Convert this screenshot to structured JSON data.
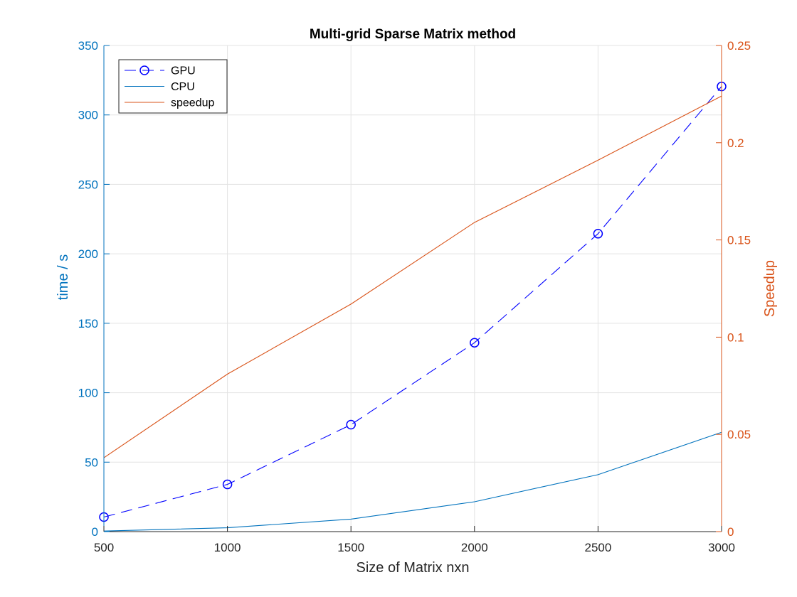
{
  "chart_data": {
    "type": "line",
    "title": "Multi-grid Sparse Matrix method",
    "xlabel": "Size of Matrix nxn",
    "ylabel": "time / s",
    "ylabel_right": "Speedup",
    "x": [
      500,
      1000,
      1500,
      2000,
      2500,
      3000
    ],
    "xlim": [
      500,
      3000
    ],
    "ylim": [
      0,
      350
    ],
    "ylim_right": [
      0,
      0.25
    ],
    "xticks": [
      500,
      1000,
      1500,
      2000,
      2500,
      3000
    ],
    "yticks": [
      0,
      50,
      100,
      150,
      200,
      250,
      300,
      350
    ],
    "yticks_right": [
      0,
      0.05,
      0.1,
      0.15,
      0.2,
      0.25
    ],
    "xtick_labels": [
      "500",
      "1000",
      "1500",
      "2000",
      "2500",
      "3000"
    ],
    "ytick_labels": [
      "0",
      "50",
      "100",
      "150",
      "200",
      "250",
      "300",
      "350"
    ],
    "ytick_labels_right": [
      "0",
      "0.05",
      "0.1",
      "0.15",
      "0.2",
      "0.25"
    ],
    "grid": true,
    "legend_position": "top-left",
    "series": [
      {
        "name": "GPU",
        "axis": "left",
        "values": [
          10.5,
          34,
          77,
          136,
          214.5,
          320.5
        ],
        "color": "#0000ff",
        "line_style": "dashed",
        "marker": "circle"
      },
      {
        "name": "CPU",
        "axis": "left",
        "values": [
          0.4,
          2.8,
          9.0,
          21.5,
          41.0,
          71.5
        ],
        "color": "#0072bd",
        "line_style": "solid",
        "marker": "none"
      },
      {
        "name": "speedup",
        "axis": "right",
        "values": [
          0.038,
          0.081,
          0.117,
          0.159,
          0.191,
          0.224
        ],
        "color": "#d95319",
        "line_style": "solid",
        "marker": "none"
      }
    ],
    "colors": {
      "left_axis": "#0072bd",
      "right_axis": "#d95319",
      "grid": "#e3e3e3",
      "text": "#262626"
    }
  }
}
